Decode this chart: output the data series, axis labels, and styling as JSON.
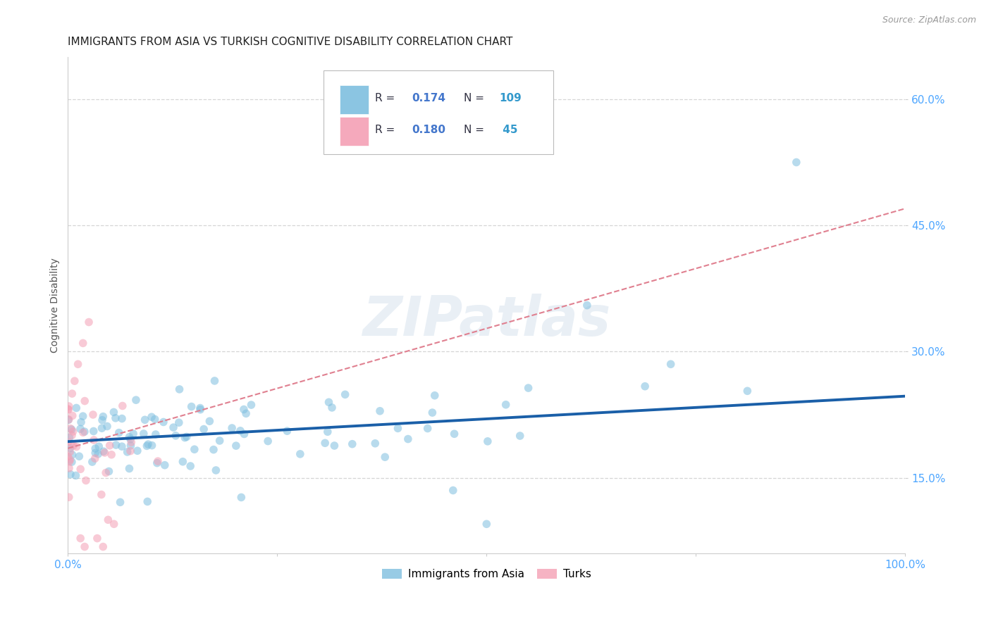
{
  "title": "IMMIGRANTS FROM ASIA VS TURKISH COGNITIVE DISABILITY CORRELATION CHART",
  "source": "Source: ZipAtlas.com",
  "tick_color": "#4da6ff",
  "ylabel": "Cognitive Disability",
  "xlim": [
    0.0,
    1.0
  ],
  "ylim": [
    0.06,
    0.65
  ],
  "yticks": [
    0.15,
    0.3,
    0.45,
    0.6
  ],
  "ytick_labels": [
    "15.0%",
    "30.0%",
    "45.0%",
    "60.0%"
  ],
  "xtick_labels": [
    "0.0%",
    "100.0%"
  ],
  "watermark": "ZIPatlas",
  "blue_color": "#7fbfdf",
  "pink_color": "#f4a0b5",
  "blue_line_color": "#1a5fa8",
  "pink_line_color": "#e08090",
  "legend_text_dark": "#333344",
  "legend_val_color": "#4477cc",
  "legend_n_color": "#3399cc",
  "scatter_alpha": 0.55,
  "marker_size": 70,
  "blue_trend": [
    0.0,
    1.0,
    0.193,
    0.247
  ],
  "pink_trend": [
    0.0,
    1.0,
    0.185,
    0.47
  ],
  "background_color": "#ffffff",
  "grid_color": "#cccccc",
  "title_fontsize": 11,
  "label_fontsize": 10,
  "tick_fontsize": 11,
  "legend_fontsize": 11
}
